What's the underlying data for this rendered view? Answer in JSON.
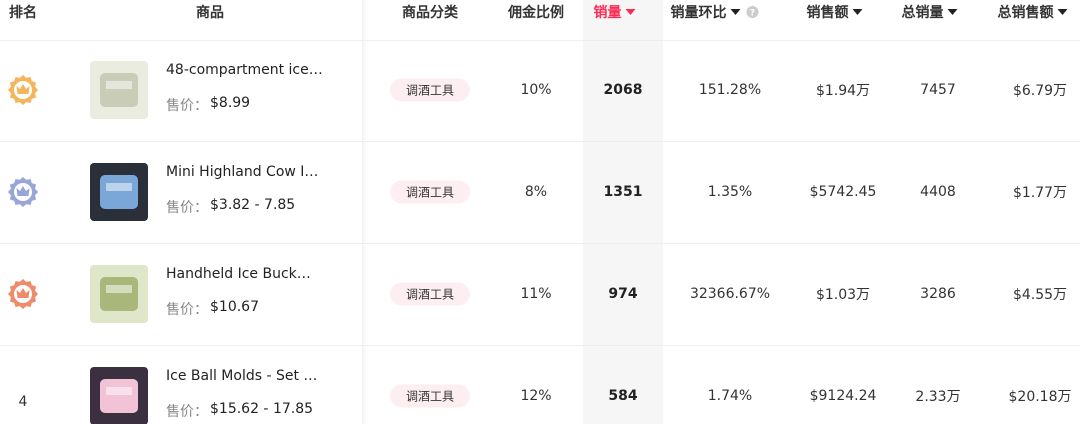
{
  "header": {
    "columns": [
      "排名",
      "商品",
      "商品分类",
      "佣金比例",
      "销量",
      "销量环比",
      "销售额",
      "总销量",
      "总销售额"
    ]
  },
  "rows": [
    {
      "product": {
        "name": "48-compartment ice…",
        "price_label": "售价：",
        "price": "$8.99"
      },
      "category": "调酒工具",
      "commission": "10%",
      "sales": "2068",
      "sales_change": "151.28%",
      "revenue": "$1.94万",
      "total_sales": "7457",
      "total_revenue": "$6.79万"
    },
    {
      "product": {
        "name": "Mini Highland Cow I…",
        "price_label": "售价：",
        "price": "$3.82 - 7.85"
      },
      "category": "调酒工具",
      "commission": "8%",
      "sales": "1351",
      "sales_change": "1.35%",
      "revenue": "$5742.45",
      "total_sales": "4408",
      "total_revenue": "$1.77万"
    },
    {
      "product": {
        "name": "Handheld Ice Buck…",
        "price_label": "售价：",
        "price": "$10.67"
      },
      "category": "调酒工具",
      "commission": "11%",
      "sales": "974",
      "sales_change": "32366.67%",
      "revenue": "$1.03万",
      "total_sales": "3286",
      "total_revenue": "$4.55万"
    },
    {
      "rank": "4",
      "product": {
        "name": "Ice Ball Molds - Set …",
        "price_label": "售价：",
        "price": "$15.62 - 17.85"
      },
      "category": "调酒工具",
      "commission": "12%",
      "sales": "584",
      "sales_change": "1.74%",
      "revenue": "$9124.24",
      "total_sales": "2.33万",
      "total_revenue": "$20.18万"
    }
  ]
}
